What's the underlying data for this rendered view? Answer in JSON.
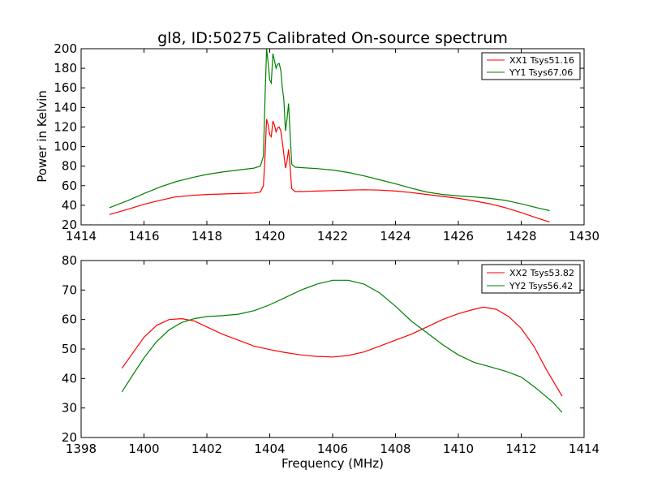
{
  "chart_data": [
    {
      "type": "line",
      "title": "gl8, ID:50275 Calibrated On-source spectrum",
      "xlabel": "",
      "ylabel": "Power in Kelvin",
      "xlim": [
        1414,
        1430
      ],
      "ylim": [
        20,
        200
      ],
      "xticks": [
        "1414",
        "1416",
        "1418",
        "1420",
        "1422",
        "1424",
        "1426",
        "1428",
        "1430"
      ],
      "yticks": [
        "20",
        "40",
        "60",
        "80",
        "100",
        "120",
        "140",
        "160",
        "180",
        "200"
      ],
      "legend_position": "top-right",
      "grid": false,
      "series": [
        {
          "name": "XX1 Tsys51.16",
          "color": "#ff0000",
          "points": [
            [
              1414.9,
              30.5
            ],
            [
              1415.5,
              36
            ],
            [
              1416,
              41
            ],
            [
              1416.5,
              45
            ],
            [
              1417,
              48.5
            ],
            [
              1417.5,
              50
            ],
            [
              1418,
              51
            ],
            [
              1418.5,
              51.5
            ],
            [
              1419,
              52
            ],
            [
              1419.5,
              52.5
            ],
            [
              1419.7,
              53.5
            ],
            [
              1419.8,
              60
            ],
            [
              1419.85,
              90
            ],
            [
              1419.9,
              128
            ],
            [
              1419.95,
              122
            ],
            [
              1420.0,
              112
            ],
            [
              1420.05,
              110
            ],
            [
              1420.1,
              126
            ],
            [
              1420.15,
              122
            ],
            [
              1420.2,
              115
            ],
            [
              1420.25,
              119
            ],
            [
              1420.3,
              120
            ],
            [
              1420.35,
              116
            ],
            [
              1420.4,
              105
            ],
            [
              1420.45,
              92
            ],
            [
              1420.5,
              78
            ],
            [
              1420.55,
              85
            ],
            [
              1420.6,
              97
            ],
            [
              1420.65,
              78
            ],
            [
              1420.7,
              57
            ],
            [
              1420.8,
              54
            ],
            [
              1421,
              54
            ],
            [
              1421.5,
              54.5
            ],
            [
              1422,
              55
            ],
            [
              1422.5,
              55.5
            ],
            [
              1423,
              55.8
            ],
            [
              1423.5,
              55.5
            ],
            [
              1424,
              54.5
            ],
            [
              1424.5,
              53
            ],
            [
              1425,
              51
            ],
            [
              1425.5,
              49
            ],
            [
              1426,
              47
            ],
            [
              1426.5,
              44.5
            ],
            [
              1427,
              41.5
            ],
            [
              1427.5,
              37.5
            ],
            [
              1428,
              32.5
            ],
            [
              1428.5,
              27
            ],
            [
              1428.9,
              23
            ]
          ]
        },
        {
          "name": "YY1 Tsys67.06",
          "color": "#008000",
          "points": [
            [
              1414.9,
              37.5
            ],
            [
              1415.5,
              45
            ],
            [
              1416,
              52
            ],
            [
              1416.5,
              58.5
            ],
            [
              1417,
              64
            ],
            [
              1417.5,
              68
            ],
            [
              1418,
              71.5
            ],
            [
              1418.5,
              74
            ],
            [
              1419,
              76
            ],
            [
              1419.5,
              78
            ],
            [
              1419.7,
              80
            ],
            [
              1419.8,
              90
            ],
            [
              1419.85,
              150
            ],
            [
              1419.9,
              200
            ],
            [
              1419.95,
              185
            ],
            [
              1420.0,
              168
            ],
            [
              1420.05,
              165
            ],
            [
              1420.1,
              195
            ],
            [
              1420.15,
              188
            ],
            [
              1420.2,
              180
            ],
            [
              1420.25,
              184
            ],
            [
              1420.3,
              185
            ],
            [
              1420.35,
              178
            ],
            [
              1420.4,
              160
            ],
            [
              1420.45,
              148
            ],
            [
              1420.5,
              116
            ],
            [
              1420.55,
              128
            ],
            [
              1420.6,
              144
            ],
            [
              1420.65,
              112
            ],
            [
              1420.7,
              82
            ],
            [
              1420.8,
              79
            ],
            [
              1421,
              78.5
            ],
            [
              1421.5,
              77.5
            ],
            [
              1422,
              76
            ],
            [
              1422.5,
              73.5
            ],
            [
              1423,
              70
            ],
            [
              1423.5,
              66
            ],
            [
              1424,
              62
            ],
            [
              1424.5,
              57.5
            ],
            [
              1425,
              53.5
            ],
            [
              1425.5,
              51
            ],
            [
              1426,
              49.5
            ],
            [
              1426.5,
              48.5
            ],
            [
              1427,
              47
            ],
            [
              1427.5,
              45
            ],
            [
              1428,
              41.5
            ],
            [
              1428.5,
              37.5
            ],
            [
              1428.9,
              34.5
            ]
          ]
        }
      ]
    },
    {
      "type": "line",
      "title": "",
      "xlabel": "Frequency (MHz)",
      "ylabel": "",
      "xlim": [
        1398,
        1414
      ],
      "ylim": [
        20,
        80
      ],
      "xticks": [
        "1398",
        "1400",
        "1402",
        "1404",
        "1406",
        "1408",
        "1410",
        "1412",
        "1414"
      ],
      "yticks": [
        "20",
        "30",
        "40",
        "50",
        "60",
        "70",
        "80"
      ],
      "legend_position": "top-right",
      "grid": false,
      "series": [
        {
          "name": "XX2 Tsys53.82",
          "color": "#ff0000",
          "points": [
            [
              1399.3,
              43.5
            ],
            [
              1399.6,
              48
            ],
            [
              1400,
              54
            ],
            [
              1400.4,
              58
            ],
            [
              1400.8,
              60
            ],
            [
              1401.2,
              60.3
            ],
            [
              1401.6,
              59.5
            ],
            [
              1402,
              57.5
            ],
            [
              1402.5,
              55
            ],
            [
              1403,
              53
            ],
            [
              1403.5,
              51
            ],
            [
              1404,
              49.8
            ],
            [
              1404.5,
              48.8
            ],
            [
              1405,
              48
            ],
            [
              1405.5,
              47.5
            ],
            [
              1406,
              47.3
            ],
            [
              1406.5,
              47.8
            ],
            [
              1407,
              49
            ],
            [
              1407.5,
              51
            ],
            [
              1408,
              53
            ],
            [
              1408.5,
              55
            ],
            [
              1409,
              57.5
            ],
            [
              1409.5,
              60
            ],
            [
              1410,
              62
            ],
            [
              1410.5,
              63.5
            ],
            [
              1410.8,
              64.2
            ],
            [
              1411.2,
              63.5
            ],
            [
              1411.6,
              61
            ],
            [
              1412,
              57
            ],
            [
              1412.4,
              51
            ],
            [
              1412.8,
              43
            ],
            [
              1413.3,
              34
            ]
          ]
        },
        {
          "name": "YY2 Tsys56.42",
          "color": "#008000",
          "points": [
            [
              1399.3,
              35.5
            ],
            [
              1399.6,
              40.5
            ],
            [
              1400,
              47
            ],
            [
              1400.4,
              52.5
            ],
            [
              1400.8,
              56.5
            ],
            [
              1401.2,
              59
            ],
            [
              1401.6,
              60.3
            ],
            [
              1402,
              61
            ],
            [
              1402.5,
              61.3
            ],
            [
              1403,
              61.8
            ],
            [
              1403.5,
              63
            ],
            [
              1404,
              65
            ],
            [
              1404.5,
              67.5
            ],
            [
              1405,
              70
            ],
            [
              1405.5,
              72
            ],
            [
              1406,
              73.3
            ],
            [
              1406.5,
              73.3
            ],
            [
              1407,
              72
            ],
            [
              1407.5,
              69
            ],
            [
              1408,
              64.5
            ],
            [
              1408.5,
              59.5
            ],
            [
              1409,
              55.5
            ],
            [
              1409.5,
              51.5
            ],
            [
              1410,
              48
            ],
            [
              1410.5,
              45.5
            ],
            [
              1411,
              44
            ],
            [
              1411.5,
              42.5
            ],
            [
              1412,
              40.5
            ],
            [
              1412.5,
              36.5
            ],
            [
              1413,
              32
            ],
            [
              1413.3,
              28.5
            ]
          ]
        }
      ]
    }
  ]
}
